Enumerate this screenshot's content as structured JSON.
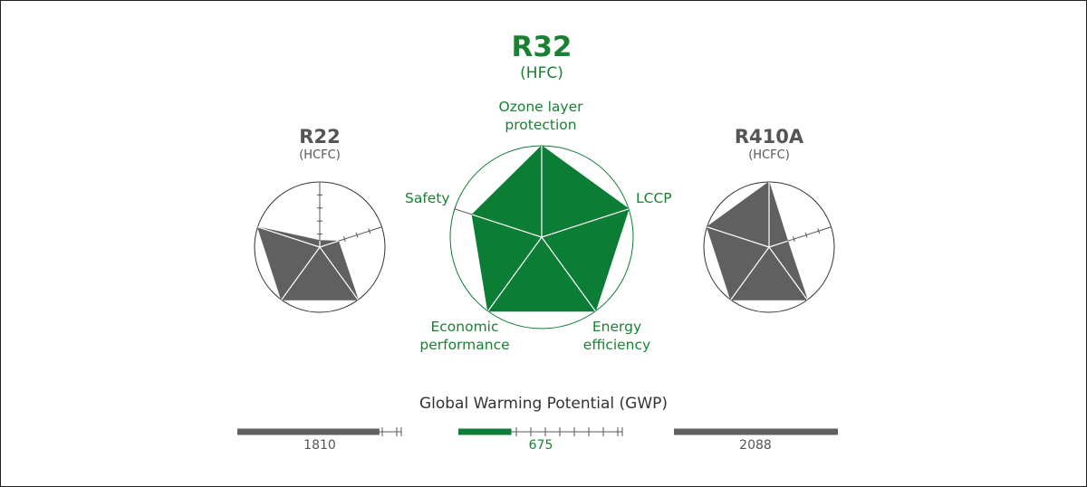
{
  "colors": {
    "green": "#0b7d35",
    "green_text": "#1a8034",
    "gray": "#606060",
    "gray_text": "#555555"
  },
  "chart_data": {
    "type": "radar",
    "axes": [
      "Ozone layer protection",
      "LCCP",
      "Energy efficiency",
      "Economic performance",
      "Safety"
    ],
    "scale_max": 5,
    "series": [
      {
        "name": "R22",
        "subtitle": "(HCFC)",
        "values": [
          0.5,
          1.5,
          5,
          5,
          5
        ]
      },
      {
        "name": "R32",
        "subtitle": "(HFC)",
        "values": [
          5,
          5,
          5,
          5,
          4
        ]
      },
      {
        "name": "R410A",
        "subtitle": "(HCFC)",
        "values": [
          5,
          1.5,
          5,
          5,
          5
        ]
      }
    ],
    "gwp": {
      "title": "Global Warming Potential (GWP)",
      "bars": [
        {
          "name": "R22",
          "value": 1810
        },
        {
          "name": "R32",
          "value": 675
        },
        {
          "name": "R410A",
          "value": 2088
        }
      ]
    }
  },
  "labels": {
    "r22_name": "R22",
    "r22_type": "(HCFC)",
    "r32_name": "R32",
    "r32_type": "(HFC)",
    "r410a_name": "R410A",
    "r410a_type": "(HCFC)",
    "axis_ozone_1": "Ozone layer",
    "axis_ozone_2": "protection",
    "axis_lccp": "LCCP",
    "axis_energy_1": "Energy",
    "axis_energy_2": "efficiency",
    "axis_economic_1": "Economic",
    "axis_economic_2": "performance",
    "axis_safety": "Safety",
    "gwp_title": "Global Warming Potential (GWP)",
    "gwp_r22": "1810",
    "gwp_r32": "675",
    "gwp_r410a": "2088"
  }
}
